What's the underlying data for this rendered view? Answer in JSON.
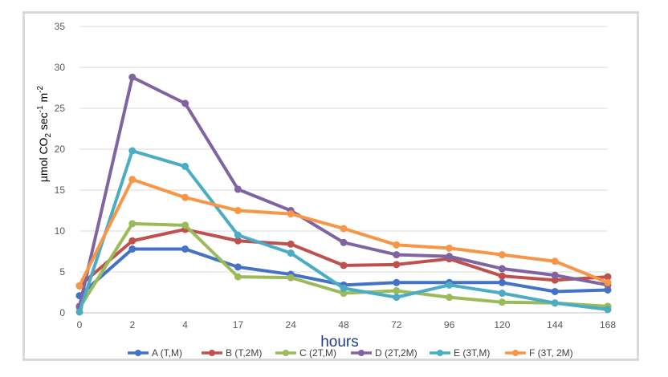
{
  "chart_data": {
    "type": "line",
    "title": "",
    "xlabel": "hours",
    "ylabel_parts": [
      "µmol CO",
      "2",
      " sec",
      "-1",
      " m",
      "-2"
    ],
    "ylim": [
      0,
      35
    ],
    "yticks": [
      0,
      5,
      10,
      15,
      20,
      25,
      30,
      35
    ],
    "categories": [
      "0",
      "2",
      "4",
      "17",
      "24",
      "48",
      "72",
      "96",
      "120",
      "144",
      "168"
    ],
    "grid": true,
    "legend_position": "bottom",
    "series": [
      {
        "name": "A (T,M)",
        "color": "#4472c4",
        "values": [
          2.1,
          7.8,
          7.8,
          5.6,
          4.7,
          3.4,
          3.7,
          3.7,
          3.7,
          2.6,
          2.8
        ]
      },
      {
        "name": "B (T,2M)",
        "color": "#c0504d",
        "values": [
          3.3,
          8.8,
          10.2,
          8.8,
          8.4,
          5.8,
          5.9,
          6.6,
          4.5,
          4.0,
          4.4
        ]
      },
      {
        "name": "C (2T,M)",
        "color": "#9bbb59",
        "values": [
          0.6,
          10.9,
          10.7,
          4.4,
          4.3,
          2.4,
          2.7,
          1.9,
          1.3,
          1.2,
          0.8
        ]
      },
      {
        "name": "D (2T,2M)",
        "color": "#8064a2",
        "values": [
          0.8,
          28.8,
          25.6,
          15.1,
          12.5,
          8.6,
          7.1,
          6.9,
          5.4,
          4.6,
          3.4
        ]
      },
      {
        "name": "E (3T,M)",
        "color": "#4bacc6",
        "values": [
          0.1,
          19.8,
          17.9,
          9.5,
          7.3,
          3.0,
          1.9,
          3.4,
          2.4,
          1.2,
          0.4
        ]
      },
      {
        "name": "F (3T, 2M)",
        "color": "#f79646",
        "values": [
          3.3,
          16.3,
          14.1,
          12.5,
          12.1,
          10.3,
          8.3,
          7.9,
          7.1,
          6.3,
          3.7
        ]
      }
    ]
  }
}
